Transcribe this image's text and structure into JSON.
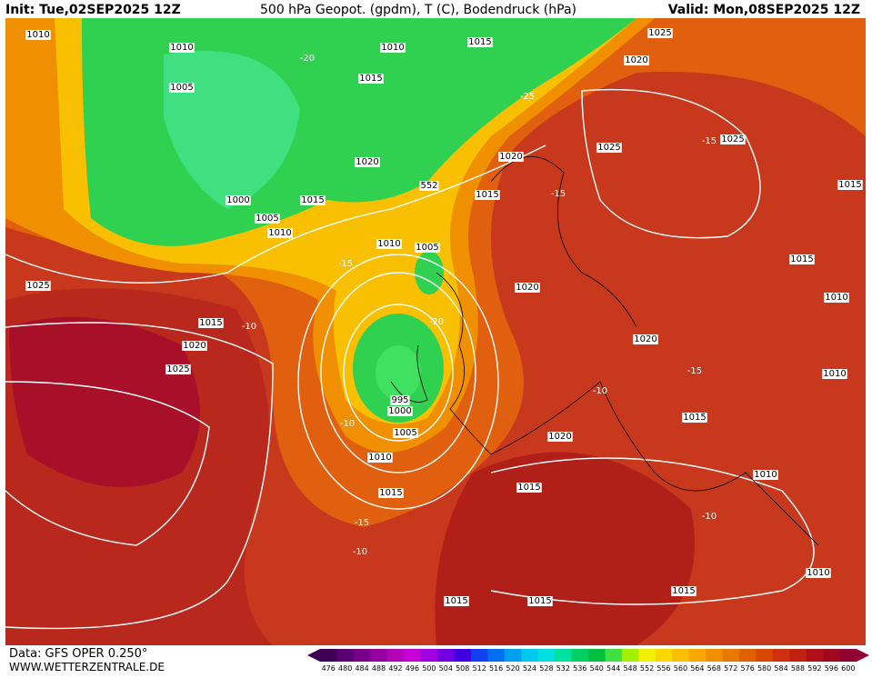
{
  "header": {
    "init": "Init: Tue,02SEP2025 12Z",
    "field": "500 hPa Geopot. (gpdm), T (C), Bodendruck (hPa)",
    "valid": "Valid: Mon,08SEP2025 12Z"
  },
  "footer": {
    "data": "Data: GFS OPER 0.250°",
    "site": "WWW.WETTERZENTRALE.DE"
  },
  "colorbar": {
    "labels": [
      476,
      480,
      484,
      488,
      492,
      496,
      500,
      504,
      508,
      512,
      516,
      520,
      524,
      528,
      532,
      536,
      540,
      544,
      548,
      552,
      556,
      560,
      564,
      568,
      572,
      576,
      580,
      584,
      588,
      592,
      596,
      600
    ],
    "colors": [
      "#3d0055",
      "#5a0070",
      "#780088",
      "#9600a0",
      "#b400b8",
      "#c800d8",
      "#a000e0",
      "#7000e0",
      "#4000e0",
      "#1040f0",
      "#0070f0",
      "#00a0f0",
      "#00c8f0",
      "#00e0e0",
      "#00e0a0",
      "#00d060",
      "#00c040",
      "#40e040",
      "#a0f000",
      "#f0f000",
      "#f8d800",
      "#f8c000",
      "#f8a800",
      "#f09000",
      "#e87800",
      "#e06000",
      "#d84800",
      "#d03010",
      "#c02010",
      "#b01018",
      "#a00820",
      "#900030"
    ]
  },
  "map_labels": [
    "1010",
    "1010",
    "1010",
    "1015",
    "1005",
    "1015",
    "1020",
    "1000",
    "1015",
    "1005",
    "1010",
    "1015",
    "552",
    "1025",
    "1020",
    "1025",
    "1015",
    "1025",
    "1015",
    "1020",
    "1010",
    "1005",
    "1020",
    "1010",
    "1020",
    "1025",
    "995",
    "1000",
    "1005",
    "1010",
    "1015",
    "1015",
    "1020",
    "1015",
    "1010",
    "1025",
    "1015",
    "1015",
    "1015",
    "1010",
    "1020",
    "1015",
    "1010",
    "-20",
    "-25",
    "-15",
    "-10",
    "-15",
    "-20",
    "-15",
    "-10",
    "-15",
    "-10",
    "-15",
    "-10",
    "-10"
  ]
}
